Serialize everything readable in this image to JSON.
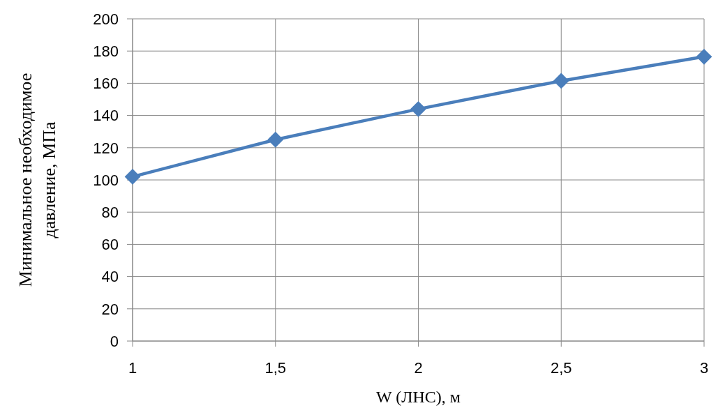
{
  "chart_data": {
    "type": "line",
    "xlabel": "W (ЛНС), м",
    "ylabel": "Минимальное необходимое давление, МПа",
    "x": [
      1,
      1.5,
      2,
      2.5,
      3
    ],
    "series": [
      {
        "color": "#4a7ebb",
        "values": [
          102,
          125,
          144,
          161.5,
          176.5
        ]
      }
    ],
    "xlim": [
      1,
      3
    ],
    "xticks": [
      1,
      {
        "value": 1.5,
        "label": "1,5"
      },
      2,
      {
        "value": 2.5,
        "label": "2,5"
      },
      3
    ],
    "ylim": [
      0,
      200
    ],
    "yticks": [
      0,
      20,
      40,
      60,
      80,
      100,
      120,
      140,
      160,
      180,
      200
    ],
    "grid": true,
    "marker": "diamond"
  }
}
